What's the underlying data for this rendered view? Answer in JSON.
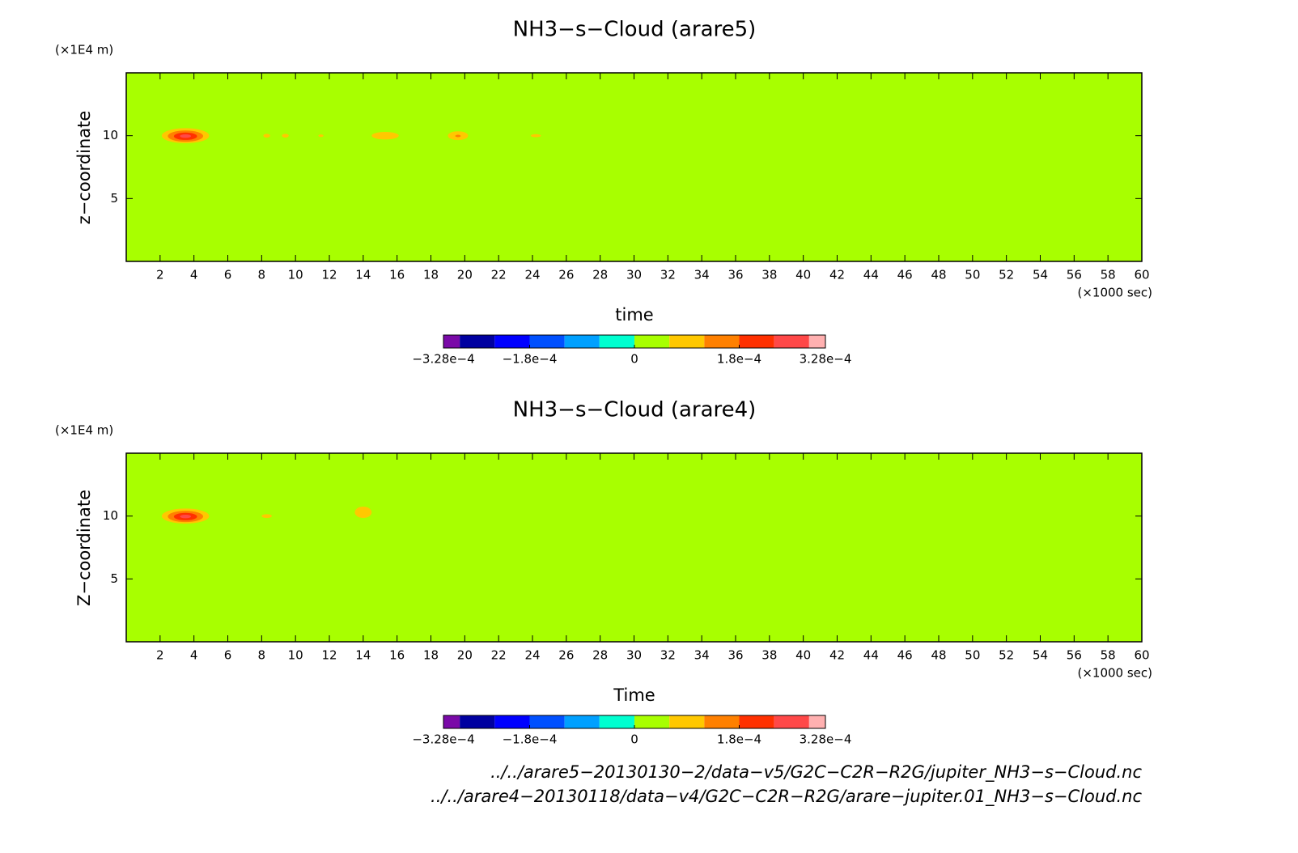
{
  "chart_data": [
    {
      "type": "contour",
      "title": "NH3−s−Cloud (arare5)",
      "y_unit": "(×1E4 m)",
      "ylabel": "z−coordinate",
      "xlabel": "time",
      "x_unit": "(×1000 sec)",
      "xlim": [
        0,
        60
      ],
      "xticks": [
        2,
        4,
        6,
        8,
        10,
        12,
        14,
        16,
        18,
        20,
        22,
        24,
        26,
        28,
        30,
        32,
        34,
        36,
        38,
        40,
        42,
        44,
        46,
        48,
        50,
        52,
        54,
        56,
        58,
        60
      ],
      "ylim": [
        0,
        15
      ],
      "yticks": [
        5,
        10
      ],
      "colorbar": {
        "bounds": [
          -0.000328,
          -0.0003,
          -0.00024,
          -0.00018,
          -0.00012,
          -6e-05,
          0,
          6e-05,
          0.00012,
          0.00018,
          0.00024,
          0.0003,
          0.000328
        ],
        "colors": [
          "#7a0aa8",
          "#0000a0",
          "#0000ff",
          "#0050ff",
          "#00a0ff",
          "#00ffd0",
          "#a8ff00",
          "#ffc800",
          "#ff8000",
          "#ff3000",
          "#ff4848",
          "#ffb0b0"
        ],
        "ticks": [
          {
            "value": -0.000328,
            "label": "−3.28e−4"
          },
          {
            "value": -0.00018,
            "label": "−1.8e−4"
          },
          0,
          {
            "value": 0.00018,
            "label": "1.8e−4"
          },
          {
            "value": 0.000328,
            "label": "3.28e−4"
          }
        ]
      },
      "blobs": [
        {
          "x": 3.5,
          "z": 10,
          "dx": 1.4,
          "dz": 0.6,
          "value": 0.00026
        },
        {
          "x": 8.3,
          "z": 10,
          "dx": 0.2,
          "dz": 0.15,
          "value": 7e-05
        },
        {
          "x": 9.4,
          "z": 10,
          "dx": 0.2,
          "dz": 0.15,
          "value": 7e-05
        },
        {
          "x": 11.5,
          "z": 10,
          "dx": 0.15,
          "dz": 0.1,
          "value": 7e-05
        },
        {
          "x": 15.3,
          "z": 10,
          "dx": 0.8,
          "dz": 0.3,
          "value": 8e-05
        },
        {
          "x": 19.6,
          "z": 10,
          "dx": 0.6,
          "dz": 0.35,
          "value": 0.00013
        },
        {
          "x": 24.2,
          "z": 10,
          "dx": 0.3,
          "dz": 0.12,
          "value": 7e-05
        }
      ]
    },
    {
      "type": "contour",
      "title": "NH3−s−Cloud (arare4)",
      "y_unit": "(×1E4 m)",
      "ylabel": "Z−coordinate",
      "xlabel": "Time",
      "x_unit": "(×1000 sec)",
      "xlim": [
        0,
        60
      ],
      "xticks": [
        2,
        4,
        6,
        8,
        10,
        12,
        14,
        16,
        18,
        20,
        22,
        24,
        26,
        28,
        30,
        32,
        34,
        36,
        38,
        40,
        42,
        44,
        46,
        48,
        50,
        52,
        54,
        56,
        58,
        60
      ],
      "ylim": [
        0,
        15
      ],
      "yticks": [
        5,
        10
      ],
      "colorbar": {
        "bounds": [
          -0.000328,
          -0.0003,
          -0.00024,
          -0.00018,
          -0.00012,
          -6e-05,
          0,
          6e-05,
          0.00012,
          0.00018,
          0.00024,
          0.0003,
          0.000328
        ],
        "colors": [
          "#7a0aa8",
          "#0000a0",
          "#0000ff",
          "#0050ff",
          "#00a0ff",
          "#00ffd0",
          "#a8ff00",
          "#ffc800",
          "#ff8000",
          "#ff3000",
          "#ff4848",
          "#ffb0b0"
        ],
        "ticks": [
          {
            "value": -0.000328,
            "label": "−3.28e−4"
          },
          {
            "value": -0.00018,
            "label": "−1.8e−4"
          },
          0,
          {
            "value": 0.00018,
            "label": "1.8e−4"
          },
          {
            "value": 0.000328,
            "label": "3.28e−4"
          }
        ]
      },
      "blobs": [
        {
          "x": 3.5,
          "z": 10,
          "dx": 1.4,
          "dz": 0.6,
          "value": 0.00026
        },
        {
          "x": 8.3,
          "z": 10,
          "dx": 0.3,
          "dz": 0.15,
          "value": 7e-05
        },
        {
          "x": 14,
          "z": 10.3,
          "dx": 0.5,
          "dz": 0.45,
          "value": 0.0001
        }
      ]
    }
  ],
  "footer": {
    "files": [
      "../../arare5−20130130−2/data−v5/G2C−C2R−R2G/jupiter_NH3−s−Cloud.nc",
      "../../arare4−20130118/data−v4/G2C−C2R−R2G/arare−jupiter.01_NH3−s−Cloud.nc"
    ]
  }
}
